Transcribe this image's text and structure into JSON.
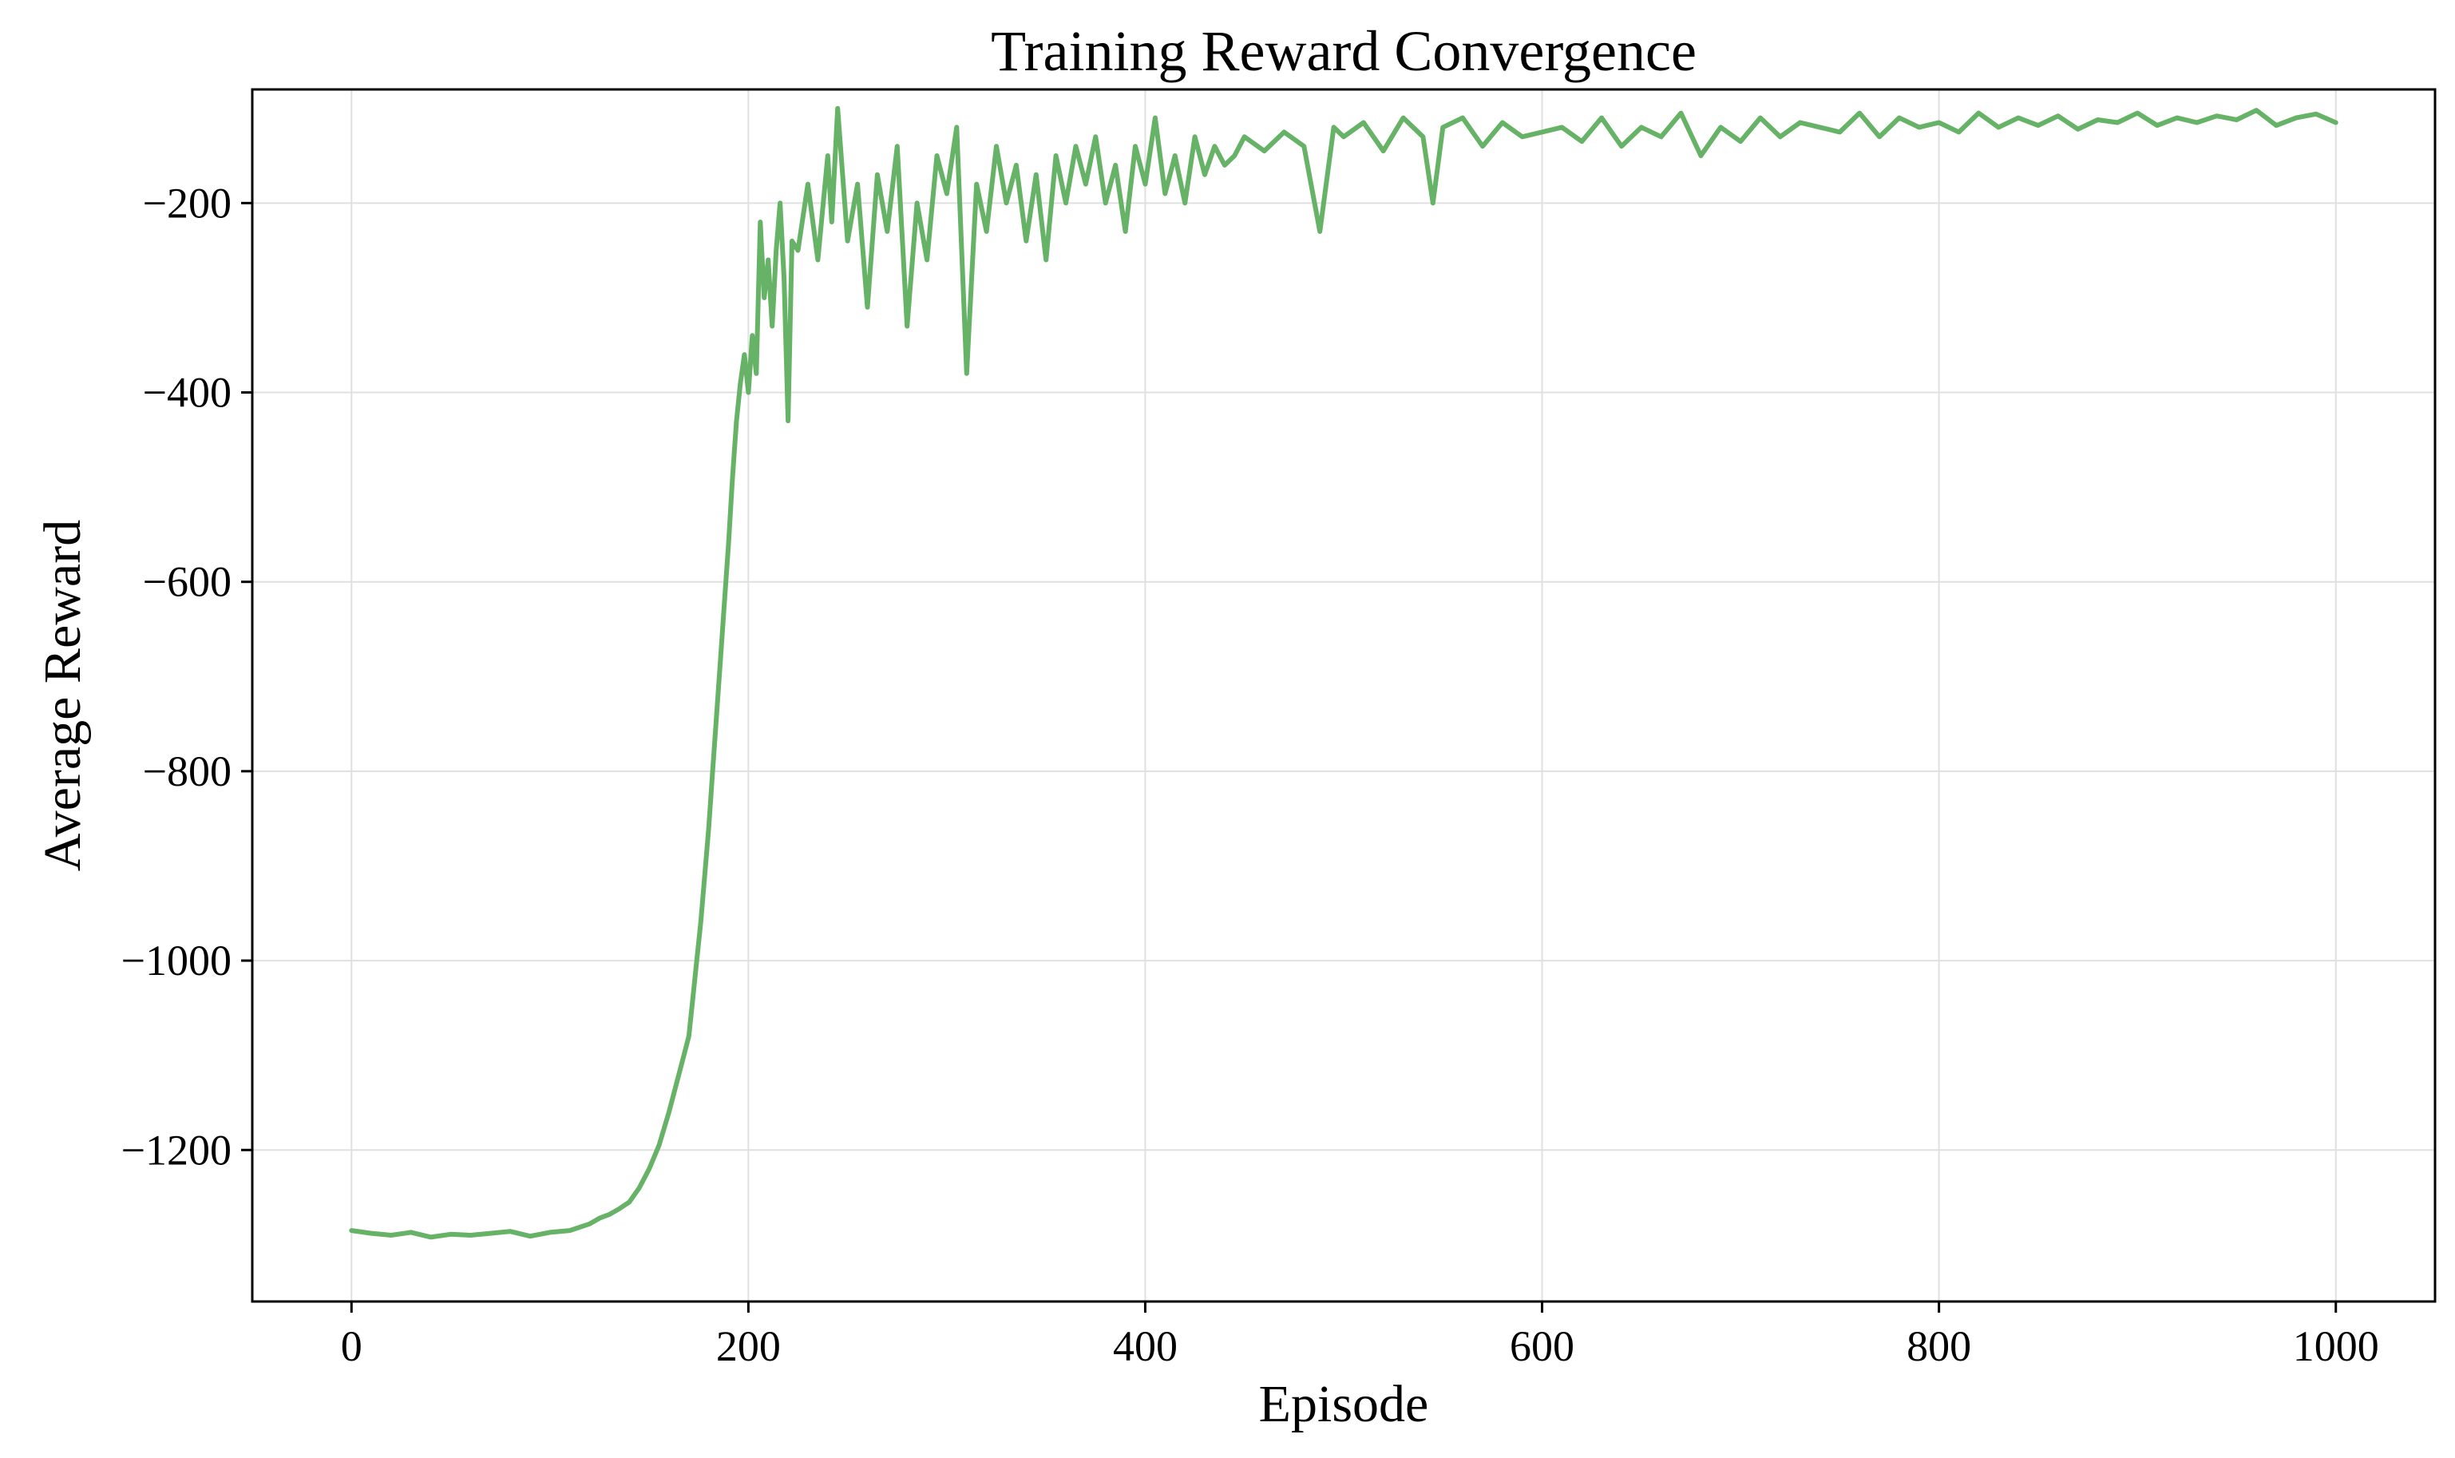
{
  "chart_data": {
    "type": "line",
    "title": "Training  Reward Convergence",
    "xlabel": "Episode",
    "ylabel": "Average  Reward",
    "xlim": [
      -50,
      1050
    ],
    "ylim": [
      -1360,
      -80
    ],
    "xticks": [
      0,
      200,
      400,
      600,
      800,
      1000
    ],
    "xtick_labels": [
      "0",
      "200",
      "400",
      "600",
      "800",
      "1000"
    ],
    "yticks": [
      -1200,
      -1000,
      -800,
      -600,
      -400,
      -200
    ],
    "ytick_labels": [
      "−1200",
      "−1000",
      "−800",
      "−600",
      "−400",
      "−200"
    ],
    "grid": true,
    "legend": "none",
    "series": [
      {
        "color": "#66b266",
        "x": [
          0,
          10,
          20,
          30,
          40,
          50,
          60,
          70,
          80,
          90,
          100,
          110,
          120,
          125,
          130,
          135,
          140,
          145,
          150,
          155,
          160,
          165,
          170,
          172,
          174,
          176,
          178,
          180,
          182,
          184,
          186,
          188,
          190,
          192,
          194,
          196,
          198,
          200,
          202,
          204,
          206,
          208,
          210,
          212,
          214,
          216,
          218,
          220,
          222,
          225,
          230,
          235,
          240,
          242,
          245,
          250,
          255,
          260,
          265,
          270,
          275,
          280,
          285,
          290,
          295,
          300,
          305,
          310,
          315,
          320,
          325,
          330,
          335,
          340,
          345,
          350,
          355,
          360,
          365,
          370,
          375,
          380,
          385,
          390,
          395,
          400,
          405,
          410,
          415,
          420,
          425,
          430,
          435,
          440,
          445,
          450,
          460,
          470,
          480,
          488,
          495,
          500,
          510,
          520,
          530,
          540,
          545,
          550,
          560,
          570,
          580,
          590,
          600,
          610,
          620,
          630,
          640,
          650,
          660,
          670,
          680,
          690,
          700,
          710,
          720,
          730,
          740,
          750,
          760,
          770,
          780,
          790,
          800,
          810,
          820,
          830,
          840,
          850,
          860,
          870,
          880,
          890,
          900,
          910,
          920,
          930,
          940,
          950,
          960,
          970,
          980,
          990,
          1000
        ],
        "y": [
          -1285,
          -1288,
          -1290,
          -1287,
          -1292,
          -1289,
          -1290,
          -1288,
          -1286,
          -1291,
          -1287,
          -1285,
          -1278,
          -1272,
          -1268,
          -1262,
          -1255,
          -1240,
          -1220,
          -1195,
          -1160,
          -1120,
          -1080,
          -1040,
          -1000,
          -960,
          -910,
          -860,
          -800,
          -740,
          -680,
          -620,
          -560,
          -490,
          -430,
          -390,
          -360,
          -400,
          -340,
          -380,
          -220,
          -300,
          -260,
          -330,
          -250,
          -200,
          -280,
          -430,
          -240,
          -250,
          -180,
          -260,
          -150,
          -220,
          -100,
          -240,
          -180,
          -310,
          -170,
          -230,
          -140,
          -330,
          -200,
          -260,
          -150,
          -190,
          -120,
          -380,
          -180,
          -230,
          -140,
          -200,
          -160,
          -240,
          -170,
          -260,
          -150,
          -200,
          -140,
          -180,
          -130,
          -200,
          -160,
          -230,
          -140,
          -180,
          -110,
          -190,
          -150,
          -200,
          -130,
          -170,
          -140,
          -160,
          -150,
          -130,
          -145,
          -125,
          -140,
          -230,
          -120,
          -130,
          -115,
          -145,
          -110,
          -130,
          -200,
          -120,
          -110,
          -140,
          -115,
          -130,
          -125,
          -120,
          -135,
          -110,
          -140,
          -120,
          -130,
          -105,
          -150,
          -120,
          -135,
          -110,
          -130,
          -115,
          -120,
          -125,
          -105,
          -130,
          -110,
          -120,
          -115,
          -125,
          -105,
          -120,
          -110,
          -118,
          -108,
          -122,
          -112,
          -115,
          -105,
          -118,
          -110,
          -115,
          -108,
          -112,
          -102,
          -118,
          -110,
          -106,
          -115
        ]
      }
    ]
  }
}
